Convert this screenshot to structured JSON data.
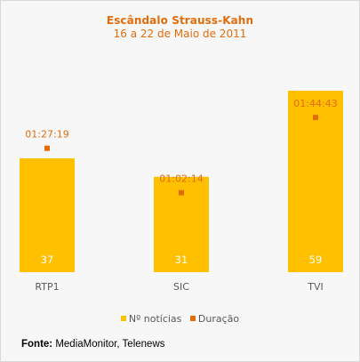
{
  "chart_data": {
    "type": "bar",
    "title": "Escândalo Strauss-Kahn",
    "subtitle": "16 a 22 de Maio de 2011",
    "categories": [
      "RTP1",
      "SIC",
      "TVI"
    ],
    "series": [
      {
        "name": "Nº notícias",
        "values": [
          37,
          31,
          59
        ],
        "color": "#ffc000"
      },
      {
        "name": "Duração",
        "values": [
          "01:27:19",
          "01:02:14",
          "01:44:43"
        ],
        "color": "#e36c0a"
      }
    ],
    "legend_position": "bottom",
    "grid": false
  },
  "source": {
    "label": "Fonte:",
    "text": " MediaMonitor, Telenews"
  }
}
